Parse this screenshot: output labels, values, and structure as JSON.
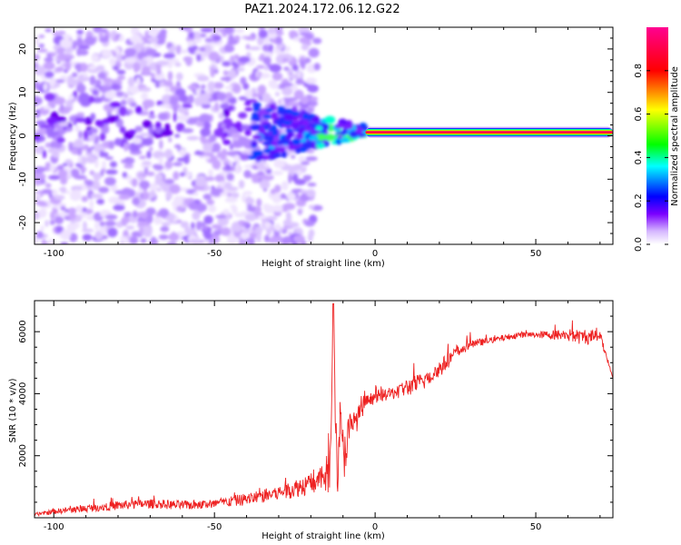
{
  "title": "PAZ1.2024.172.06.12.G22",
  "chart_data": [
    {
      "type": "heatmap",
      "xlabel": "Height of straight line (km)",
      "ylabel": "Frequency (Hz)",
      "xlim": [
        -106,
        74
      ],
      "ylim": [
        -25,
        25
      ],
      "xticks": [
        -100,
        -50,
        0,
        50
      ],
      "xtick_labels": [
        "-100",
        "-50",
        "0",
        "50"
      ],
      "yticks": [
        -20,
        -10,
        0,
        10,
        20
      ],
      "ytick_labels": [
        "-20",
        "-10",
        "0",
        "10",
        "20"
      ],
      "colorbar": {
        "label": "Normalized spectral amplitude",
        "range": [
          0,
          1
        ],
        "ticks": [
          0,
          0.2,
          0.4,
          0.6,
          0.8
        ],
        "tick_labels": [
          "0.0",
          "0.2",
          "0.4",
          "0.6",
          "0.8"
        ],
        "colors": [
          "#ffffff",
          "#7b00ff",
          "#0000ff",
          "#00ffff",
          "#00ff00",
          "#ffff00",
          "#ff0000",
          "#ff00c0"
        ]
      },
      "description_values": {
        "noise_region_x": [
          -106,
          -18
        ],
        "transition_x": [
          -18,
          -3
        ],
        "tone_region_x": [
          -3,
          74
        ],
        "tone_frequency_hz": 0.8,
        "tone_normalized_amplitude": 1.0
      }
    },
    {
      "type": "line",
      "xlabel": "Height of straight line (km)",
      "ylabel": "SNR (10 * v/v)",
      "xlim": [
        -106,
        74
      ],
      "ylim": [
        0,
        7000
      ],
      "xticks": [
        -100,
        -50,
        0,
        50
      ],
      "xtick_labels": [
        "-100",
        "-50",
        "0",
        "50"
      ],
      "yticks": [
        2000,
        4000,
        6000
      ],
      "ytick_labels": [
        "2000",
        "4000",
        "6000"
      ],
      "series": [
        {
          "color": "#ee2222",
          "x": [
            -106,
            -100,
            -90,
            -80,
            -70,
            -60,
            -50,
            -40,
            -30,
            -20,
            -16,
            -14,
            -13,
            -12,
            -11,
            -10,
            -8,
            -5,
            -3,
            0,
            5,
            10,
            15,
            20,
            25,
            30,
            35,
            40,
            45,
            50,
            55,
            60,
            65,
            70,
            74
          ],
          "values": [
            100,
            200,
            300,
            400,
            450,
            400,
            450,
            600,
            800,
            1100,
            1300,
            1500,
            6900,
            1500,
            3000,
            2000,
            2800,
            3300,
            3700,
            3900,
            4000,
            4200,
            4400,
            4800,
            5300,
            5600,
            5700,
            5800,
            5900,
            5900,
            5900,
            5900,
            5800,
            5900,
            4500
          ],
          "noise_amplitude": [
            50,
            80,
            120,
            150,
            150,
            150,
            150,
            200,
            250,
            350,
            400,
            1200,
            0,
            1300,
            1000,
            1000,
            600,
            350,
            250,
            200,
            200,
            300,
            300,
            300,
            200,
            150,
            100,
            100,
            100,
            100,
            150,
            200,
            250,
            200,
            0
          ]
        }
      ]
    }
  ]
}
